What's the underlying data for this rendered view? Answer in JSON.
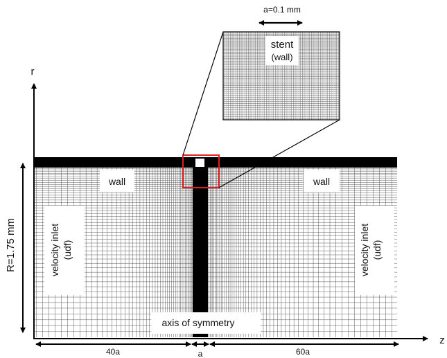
{
  "labels": {
    "inset_dimension": "a=0.1 mm",
    "stent": "stent",
    "stent_sub": "(wall)",
    "r_axis": "r",
    "z_axis": "z",
    "radius": "R=1.75 mm",
    "wall_left": "wall",
    "wall_right": "wall",
    "inlet_left": "velocity inlet",
    "inlet_left_sub": "(udf)",
    "inlet_right": "velocity inlet",
    "inlet_right_sub": "(udf)",
    "axis": "axis of symmetry",
    "dim_left": "40a",
    "dim_center": "a",
    "dim_right": "60a"
  },
  "colors": {
    "mesh_line": "#5a5a5a",
    "wall_band": "#000000",
    "highlight_box": "#e02020",
    "background": "#ffffff"
  }
}
